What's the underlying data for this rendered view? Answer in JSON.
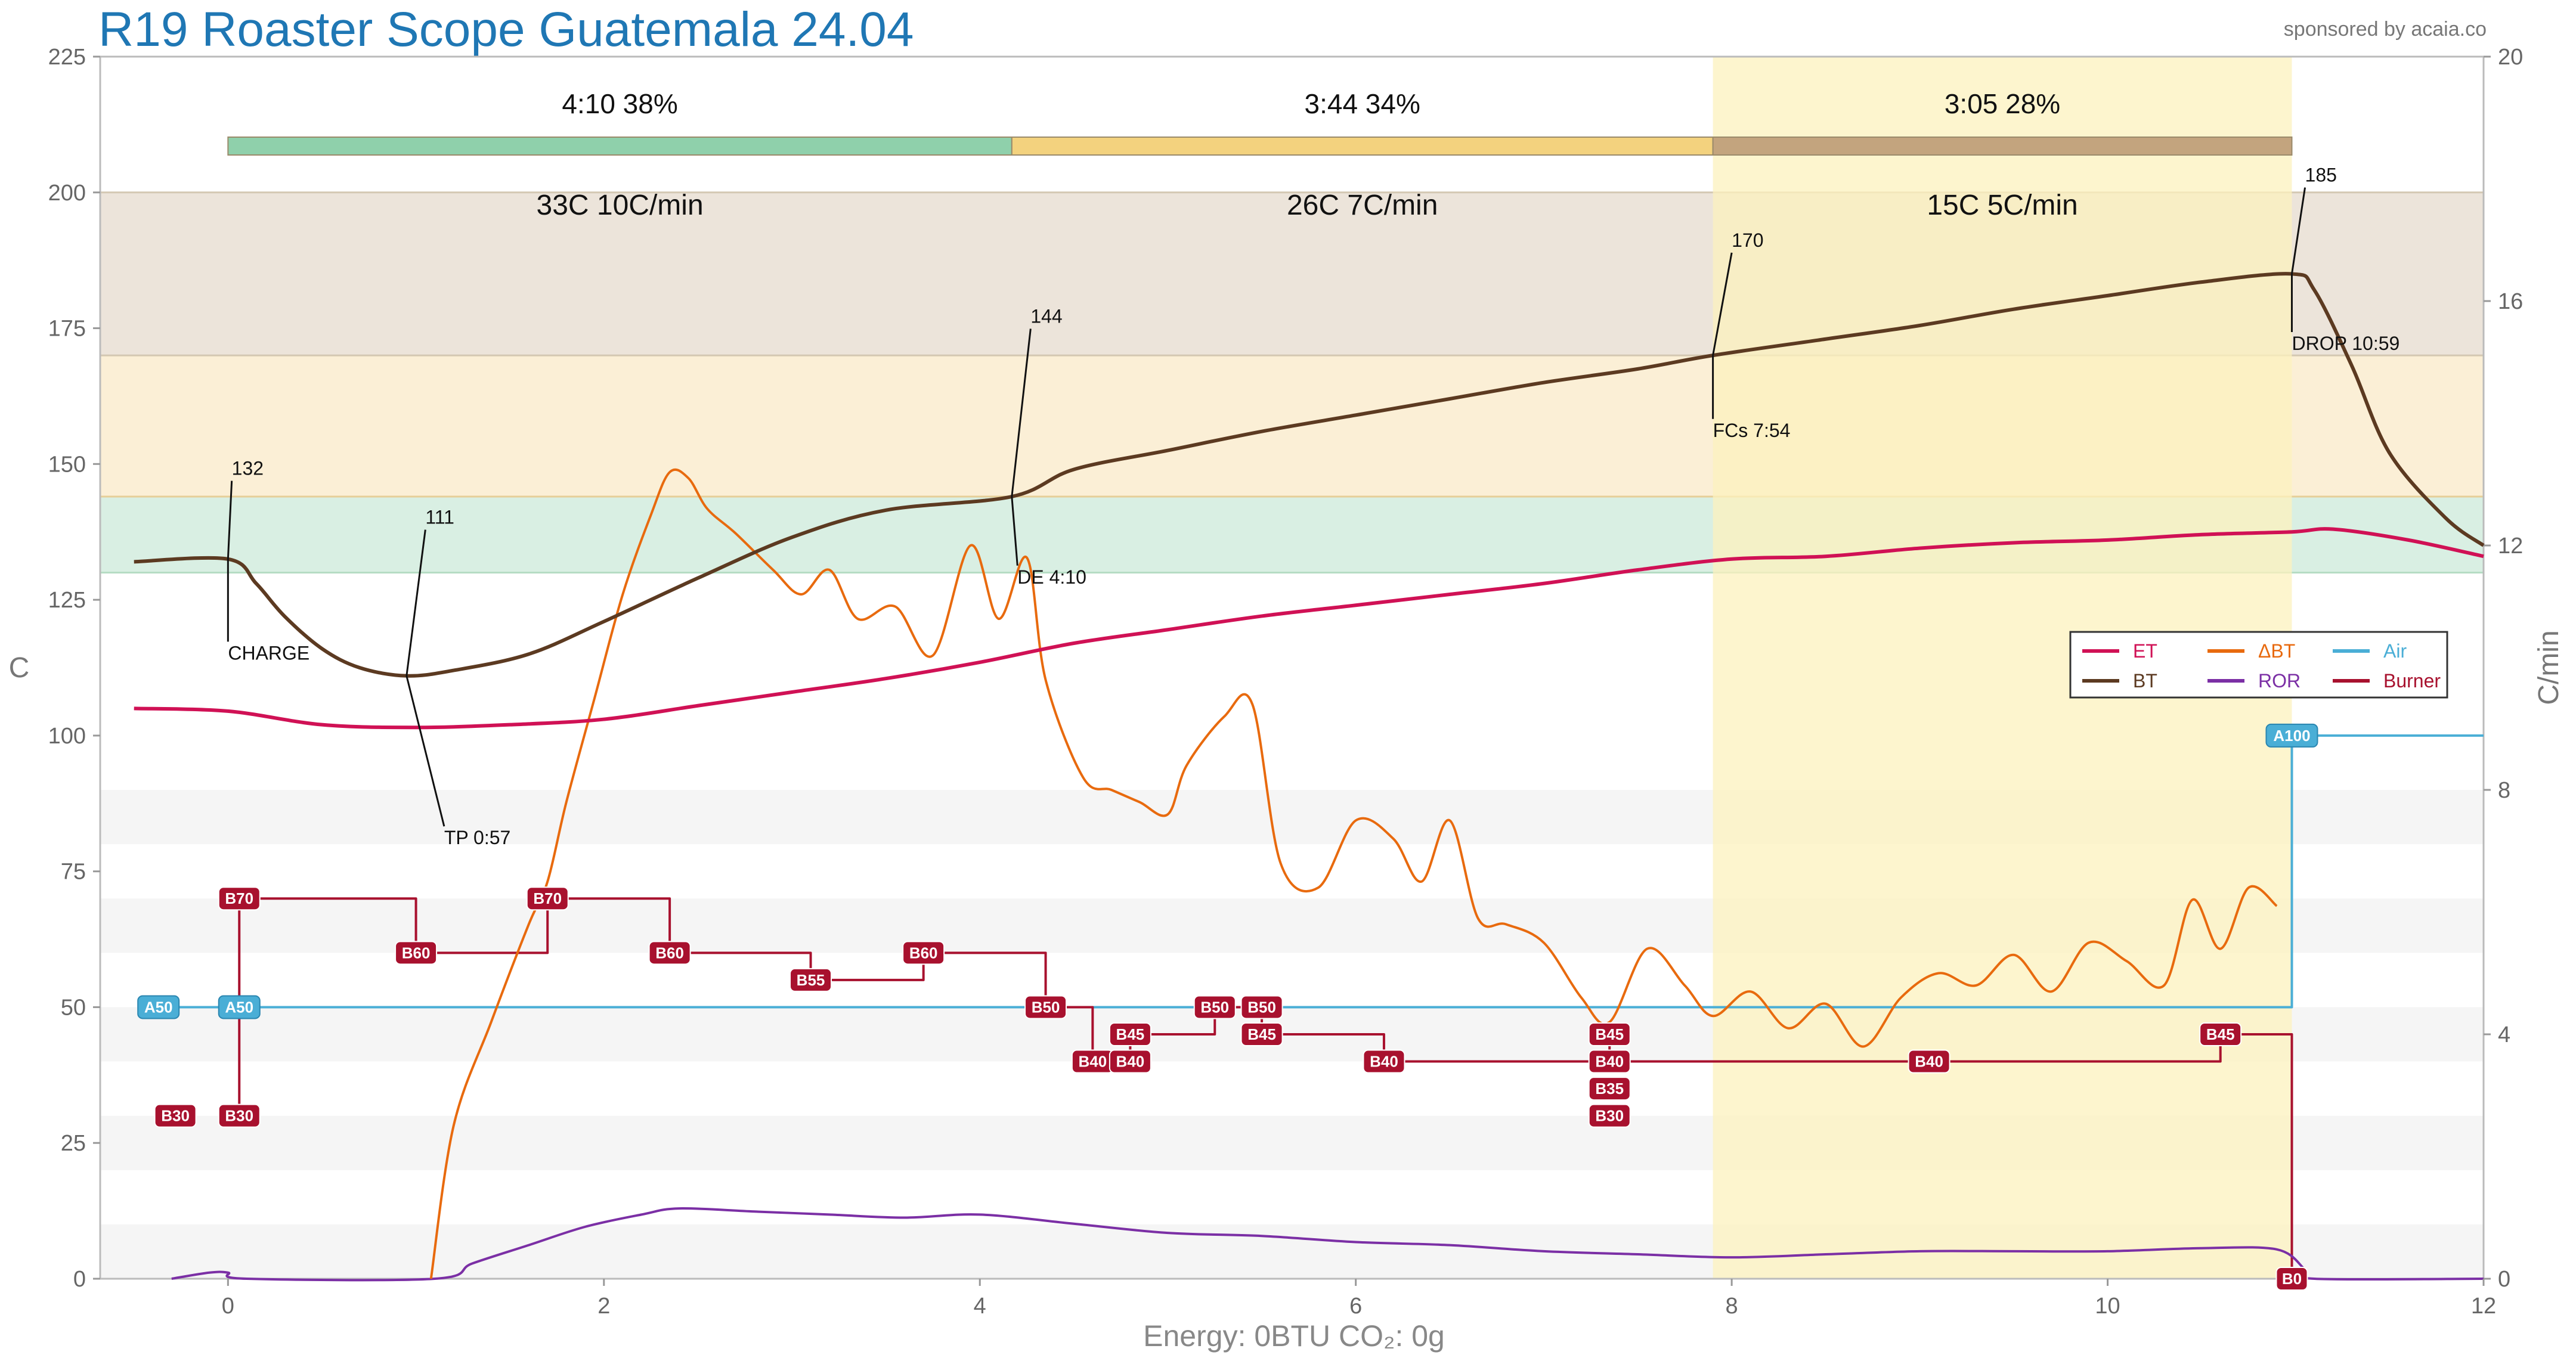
{
  "header": {
    "title": "R19 Roaster Scope Guatemala 24.04",
    "sponsor": "sponsored by acaia.co"
  },
  "footer": {
    "energy": "Energy: 0BTU   CO₂: 0g"
  },
  "colors": {
    "ET": "#d01155",
    "BT": "#5c3a21",
    "DeltaBT": "#e86a0e",
    "ROR": "#7b2fa5",
    "Air": "#4aaed6",
    "Burner": "#a8112e",
    "dry_phase": "#8fd0ab",
    "maillard_phase": "#f3d27e",
    "dev_phase": "#c3a47e",
    "green_band": "#d9efe3",
    "yellow_band": "#fbefd6",
    "brown_band": "#ece4da",
    "dev_highlight": "#fcf1bd"
  },
  "chart_data": {
    "type": "line",
    "x": {
      "label": "",
      "unit": "min",
      "lim": [
        -0.68,
        12
      ],
      "ticks": [
        0,
        2,
        4,
        6,
        8,
        10,
        12
      ]
    },
    "y_left": {
      "label": "C",
      "lim": [
        0,
        225
      ],
      "ticks": [
        0,
        25,
        50,
        75,
        100,
        125,
        150,
        175,
        200,
        225
      ]
    },
    "y_right": {
      "label": "C/min",
      "lim": [
        0,
        20
      ],
      "ticks": [
        0,
        4,
        8,
        12,
        16,
        20
      ]
    },
    "grid": true,
    "legend_position": "right",
    "legend": [
      {
        "key": "ET",
        "label": "ET",
        "color": "#d01155"
      },
      {
        "key": "DeltaBT",
        "label": "ΔBT",
        "color": "#e86a0e"
      },
      {
        "key": "Air",
        "label": "Air",
        "color": "#4aaed6"
      },
      {
        "key": "BT",
        "label": "BT",
        "color": "#5c3a21"
      },
      {
        "key": "ROR",
        "label": "ROR",
        "color": "#7b2fa5"
      },
      {
        "key": "Burner",
        "label": "Burner",
        "color": "#a8112e"
      }
    ],
    "bands": [
      {
        "from": 130,
        "to": 144,
        "color": "green"
      },
      {
        "from": 144,
        "to": 170,
        "color": "yellow"
      },
      {
        "from": 170,
        "to": 200,
        "color": "brown"
      }
    ],
    "development_region": {
      "from": 7.9,
      "to": 10.98
    },
    "phases": [
      {
        "start": 0,
        "end": 4.17,
        "top": "4:10  38%",
        "bottom": "33C  10C/min",
        "color": "#8fd0ab"
      },
      {
        "start": 4.17,
        "end": 7.9,
        "top": "3:44  34%",
        "bottom": "26C  7C/min",
        "color": "#f3d27e"
      },
      {
        "start": 7.9,
        "end": 10.98,
        "top": "3:05  28%",
        "bottom": "15C  5C/min",
        "color": "#c3a47e"
      }
    ],
    "series": [
      {
        "name": "BT",
        "axis": "left",
        "x": [
          -0.5,
          0,
          0.15,
          0.3,
          0.5,
          0.7,
          0.95,
          1.2,
          1.6,
          2.0,
          2.5,
          3.0,
          3.5,
          4.17,
          4.5,
          5.0,
          5.5,
          6.0,
          6.5,
          7.0,
          7.5,
          7.9,
          8.5,
          9.0,
          9.5,
          10.0,
          10.5,
          10.98,
          11.1,
          11.3,
          11.5,
          11.8,
          12.0
        ],
        "y": [
          132,
          132.5,
          128,
          122,
          116,
          112.5,
          111,
          112,
          115,
          121,
          129,
          136.5,
          141.5,
          144,
          149,
          152.5,
          156,
          159,
          162,
          165,
          167.5,
          170,
          173,
          175.5,
          178.5,
          181,
          183.5,
          185,
          182,
          168,
          152,
          140,
          135
        ]
      },
      {
        "name": "ET",
        "axis": "left",
        "x": [
          -0.5,
          0,
          0.5,
          1,
          1.5,
          2,
          2.5,
          3,
          3.5,
          4,
          4.5,
          5,
          5.5,
          6,
          6.5,
          7,
          7.5,
          8,
          8.5,
          9,
          9.5,
          10,
          10.5,
          10.98,
          11.2,
          11.6,
          12.0
        ],
        "y": [
          105,
          104.5,
          102,
          101.5,
          102,
          103,
          105.5,
          108,
          110.5,
          113.5,
          117,
          119.5,
          122,
          124,
          126,
          128,
          130.5,
          132.5,
          133,
          134.5,
          135.5,
          136,
          137,
          137.5,
          138,
          136,
          133
        ]
      },
      {
        "name": "ΔBT",
        "axis": "right",
        "x": [
          1.08,
          1.2,
          1.4,
          1.6,
          1.7,
          1.8,
          1.95,
          2.1,
          2.25,
          2.35,
          2.45,
          2.55,
          2.7,
          2.9,
          3.05,
          3.2,
          3.35,
          3.55,
          3.75,
          3.95,
          4.1,
          4.25,
          4.35,
          4.55,
          4.7,
          4.85,
          5.0,
          5.1,
          5.3,
          5.45,
          5.6,
          5.8,
          6.0,
          6.2,
          6.35,
          6.5,
          6.65,
          6.8,
          7.0,
          7.2,
          7.35,
          7.55,
          7.75,
          7.9,
          8.1,
          8.3,
          8.5,
          8.7,
          8.9,
          9.1,
          9.3,
          9.5,
          9.7,
          9.9,
          10.1,
          10.3,
          10.45,
          10.6,
          10.75,
          10.9
        ],
        "y": [
          0,
          2.5,
          4.2,
          5.8,
          6.5,
          7.8,
          9.5,
          11.2,
          12.5,
          13.2,
          13.1,
          12.6,
          12.2,
          11.6,
          11.2,
          11.6,
          10.8,
          11.0,
          10.2,
          12.0,
          10.8,
          11.8,
          9.8,
          8.2,
          8.0,
          7.8,
          7.6,
          8.4,
          9.2,
          9.4,
          6.8,
          6.4,
          7.5,
          7.2,
          6.5,
          7.5,
          5.9,
          5.8,
          5.5,
          4.6,
          4.2,
          5.4,
          4.8,
          4.3,
          4.7,
          4.1,
          4.5,
          3.8,
          4.6,
          5.0,
          4.8,
          5.3,
          4.7,
          5.5,
          5.2,
          4.8,
          6.2,
          5.4,
          6.4,
          6.1
        ]
      },
      {
        "name": "ROR",
        "axis": "right",
        "x": [
          -0.3,
          -0.1,
          0,
          0.1,
          1.1,
          1.3,
          1.6,
          1.9,
          2.2,
          2.4,
          2.8,
          3.2,
          3.6,
          4.0,
          4.5,
          5.0,
          5.5,
          6.0,
          6.5,
          7.0,
          7.5,
          8.0,
          8.5,
          9.0,
          9.5,
          10.0,
          10.5,
          10.9,
          11.05,
          11.1,
          12.0
        ],
        "y": [
          0,
          0.1,
          0.1,
          0,
          0,
          0.25,
          0.55,
          0.85,
          1.05,
          1.15,
          1.1,
          1.05,
          1.0,
          1.05,
          0.9,
          0.75,
          0.7,
          0.6,
          0.55,
          0.45,
          0.4,
          0.35,
          0.4,
          0.45,
          0.45,
          0.45,
          0.5,
          0.48,
          0.15,
          0,
          0
        ]
      },
      {
        "name": "Air",
        "axis": "left",
        "step": true,
        "x": [
          -0.37,
          0.06,
          10.98,
          10.98,
          12.0
        ],
        "y": [
          50,
          50,
          50,
          100,
          100
        ]
      },
      {
        "name": "Burner",
        "axis": "left",
        "step": true,
        "x": [
          0.06,
          0.06,
          0.06,
          1.0,
          1.7,
          2.35,
          3.1,
          3.7,
          4.35,
          4.6,
          4.8,
          5.25,
          5.5,
          6.15,
          7.35,
          7.35,
          9.05,
          10.6,
          10.98,
          10.98
        ],
        "y": [
          30,
          50,
          70,
          60,
          70,
          60,
          55,
          60,
          50,
          40,
          45,
          50,
          45,
          40,
          45,
          40,
          40,
          45,
          45,
          0
        ]
      }
    ],
    "burner_tags": [
      {
        "x": -0.28,
        "y": 30,
        "label": "B30"
      },
      {
        "x": 0.06,
        "y": 30,
        "label": "B30"
      },
      {
        "x": 0.06,
        "y": 70,
        "label": "B70"
      },
      {
        "x": 1.0,
        "y": 60,
        "label": "B60"
      },
      {
        "x": 1.7,
        "y": 70,
        "label": "B70"
      },
      {
        "x": 2.35,
        "y": 60,
        "label": "B60"
      },
      {
        "x": 3.1,
        "y": 55,
        "label": "B55"
      },
      {
        "x": 3.7,
        "y": 60,
        "label": "B60"
      },
      {
        "x": 4.35,
        "y": 50,
        "label": "B50"
      },
      {
        "x": 4.6,
        "y": 40,
        "label": "B40"
      },
      {
        "x": 4.8,
        "y": 40,
        "label": "B40"
      },
      {
        "x": 4.8,
        "y": 45,
        "label": "B45"
      },
      {
        "x": 5.25,
        "y": 50,
        "label": "B50"
      },
      {
        "x": 5.5,
        "y": 50,
        "label": "B50"
      },
      {
        "x": 5.5,
        "y": 45,
        "label": "B45"
      },
      {
        "x": 6.15,
        "y": 40,
        "label": "B40"
      },
      {
        "x": 7.35,
        "y": 45,
        "label": "B45"
      },
      {
        "x": 7.35,
        "y": 40,
        "label": "B40"
      },
      {
        "x": 7.35,
        "y": 35,
        "label": "B35"
      },
      {
        "x": 7.35,
        "y": 30,
        "label": "B30"
      },
      {
        "x": 9.05,
        "y": 40,
        "label": "B40"
      },
      {
        "x": 10.6,
        "y": 45,
        "label": "B45"
      },
      {
        "x": 10.98,
        "y": 0,
        "label": "B0"
      }
    ],
    "air_tags": [
      {
        "x": -0.37,
        "y": 50,
        "label": "A50"
      },
      {
        "x": 0.06,
        "y": 50,
        "label": "A50"
      },
      {
        "x": 10.98,
        "y": 100,
        "label": "A100"
      }
    ],
    "events": [
      {
        "x": 0,
        "y": 132.5,
        "value": "132",
        "name": "CHARGE",
        "vx": 0.02,
        "vy": 148,
        "nx": 0.0,
        "ny": 114
      },
      {
        "x": 0.95,
        "y": 111,
        "value": "111",
        "name": "TP 0:57",
        "vx": 1.05,
        "vy": 139,
        "nx": 1.15,
        "ny": 80
      },
      {
        "x": 4.17,
        "y": 144,
        "value": "144",
        "name": "DE 4:10",
        "vx": 4.27,
        "vy": 176,
        "nx": 4.2,
        "ny": 128
      },
      {
        "x": 7.9,
        "y": 170,
        "value": "170",
        "name": "FCs 7:54",
        "vx": 8.0,
        "vy": 190,
        "nx": 7.9,
        "ny": 155
      },
      {
        "x": 10.98,
        "y": 185,
        "value": "185",
        "name": "DROP 10:59",
        "vx": 11.05,
        "vy": 202,
        "nx": 10.98,
        "ny": 171
      }
    ]
  }
}
